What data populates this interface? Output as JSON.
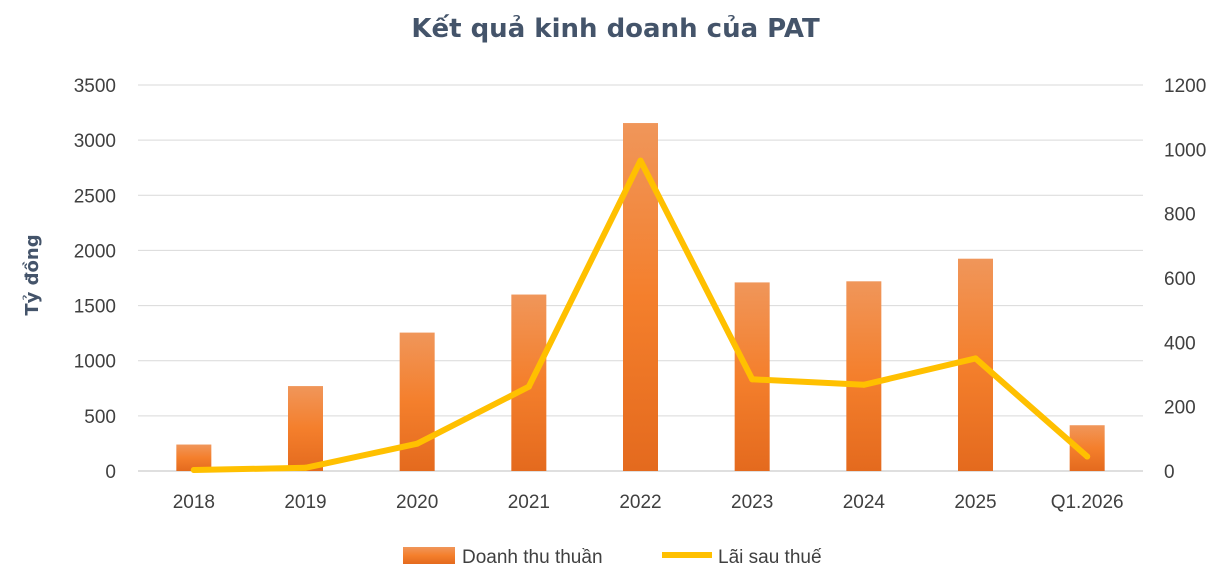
{
  "chart_data": {
    "type": "bar",
    "title": "Kết quả kinh doanh của PAT",
    "ylabel": "Tỷ đồng",
    "xlabel": "",
    "categories": [
      "2018",
      "2019",
      "2020",
      "2021",
      "2022",
      "2023",
      "2024",
      "2025",
      "Q1.2026"
    ],
    "ylim": [
      0,
      3500
    ],
    "y2lim": [
      0,
      1200
    ],
    "yticks": [
      "0",
      "500",
      "1000",
      "1500",
      "2000",
      "2500",
      "3000",
      "3500"
    ],
    "y2ticks": [
      "0",
      "200",
      "400",
      "600",
      "800",
      "1000",
      "1200"
    ],
    "grid": true,
    "legend_position": "bottom",
    "series": [
      {
        "name": "Doanh thu thuần",
        "type": "bar",
        "axis": "left",
        "color": "#ed7d31",
        "values": [
          240,
          770,
          1255,
          1600,
          3155,
          1710,
          1720,
          1925,
          415
        ]
      },
      {
        "name": "Lãi sau thuế",
        "type": "line",
        "axis": "right",
        "color": "#ffc000",
        "values": [
          3,
          10,
          85,
          262,
          965,
          285,
          268,
          350,
          45
        ]
      }
    ]
  }
}
